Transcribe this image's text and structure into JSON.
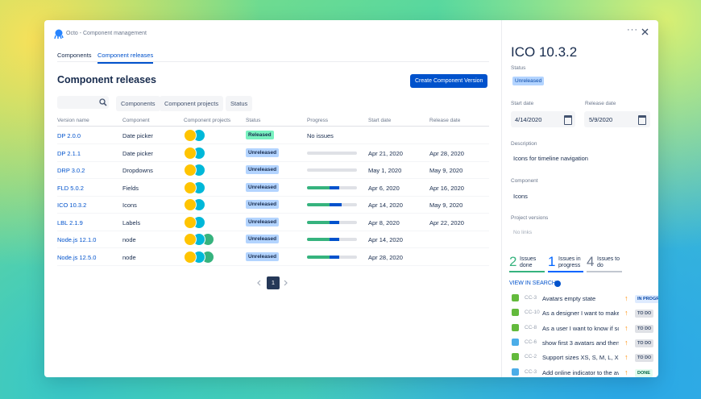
{
  "header": {
    "app_title": "Octo - Component management"
  },
  "tabs": [
    "Components",
    "Component releases"
  ],
  "page_title": "Component releases",
  "create_button": "Create Component Version",
  "filters": [
    "Components",
    "Component projects",
    "Status"
  ],
  "table": {
    "columns": [
      "Version name",
      "Component",
      "Component projects",
      "Status",
      "Progress",
      "Start date",
      "Release date"
    ],
    "rows": [
      {
        "version": "DP 2.0.0",
        "component": "Date picker",
        "avatars": 2,
        "status": "Released",
        "status_color": "#79f2c0",
        "progress_text": "No issues"
      },
      {
        "version": "DP 2.1.1",
        "component": "Date picker",
        "avatars": 2,
        "status": "Unreleased",
        "status_color": "#b3d4ff",
        "progress": {
          "done": 0,
          "in_progress": 0
        },
        "start": "Apr 21, 2020",
        "release": "Apr 28, 2020"
      },
      {
        "version": "DRP 3.0.2",
        "component": "Dropdowns",
        "avatars": 2,
        "status": "Unreleased",
        "status_color": "#b3d4ff",
        "progress": {
          "done": 0,
          "in_progress": 0
        },
        "start": "May 1, 2020",
        "release": "May 9, 2020"
      },
      {
        "version": "FLD 5.0.2",
        "component": "Fields",
        "avatars": 2,
        "status": "Unreleased",
        "status_color": "#b3d4ff",
        "progress": {
          "done": 45,
          "in_progress": 20
        },
        "start": "Apr 6, 2020",
        "release": "Apr 16, 2020"
      },
      {
        "version": "ICO 10.3.2",
        "component": "Icons",
        "avatars": 2,
        "status": "Unreleased",
        "status_color": "#b3d4ff",
        "progress": {
          "done": 45,
          "in_progress": 25
        },
        "start": "Apr 14, 2020",
        "release": "May 9, 2020"
      },
      {
        "version": "LBL 2.1.9",
        "component": "Labels",
        "avatars": 2,
        "status": "Unreleased",
        "status_color": "#b3d4ff",
        "progress": {
          "done": 45,
          "in_progress": 20
        },
        "start": "Apr 8, 2020",
        "release": "Apr 22, 2020"
      },
      {
        "version": "Node.js 12.1.0",
        "component": "node",
        "avatars": 3,
        "status": "Unreleased",
        "status_color": "#b3d4ff",
        "progress": {
          "done": 45,
          "in_progress": 20
        },
        "start": "Apr 14, 2020"
      },
      {
        "version": "Node.js 12.5.0",
        "component": "node",
        "avatars": 3,
        "status": "Unreleased",
        "status_color": "#b3d4ff",
        "progress": {
          "done": 45,
          "in_progress": 20
        },
        "start": "Apr 28, 2020"
      }
    ]
  },
  "pagination": {
    "current": "1"
  },
  "detail": {
    "title": "ICO 10.3.2",
    "status_label": "Status",
    "status": "Unreleased",
    "start_label": "Start date",
    "start": "4/14/2020",
    "release_label": "Release date",
    "release": "5/9/2020",
    "description_label": "Description",
    "description": "Icons for timeline navigation",
    "component_label": "Component",
    "component": "Icons",
    "project_versions_label": "Project versions",
    "project_versions": "No links",
    "stats": [
      {
        "count": "2",
        "label": "Issues done",
        "color": "#36b37e"
      },
      {
        "count": "1",
        "label": "Issues in progress",
        "color": "#0065ff"
      },
      {
        "count": "4",
        "label": "Issues to do",
        "color": "#c1c7d0"
      }
    ],
    "view_search": "VIEW IN SEARCH",
    "issues": [
      {
        "key": "CC-3",
        "summary": "Avatars empty state",
        "status": "IN PROGRESS",
        "color": "#deebff",
        "text_color": "#0747a6",
        "type": "story"
      },
      {
        "key": "CC-10",
        "summary": "As a designer I want to make",
        "status": "TO DO",
        "color": "#dfe1e6",
        "text_color": "#42526e",
        "type": "story"
      },
      {
        "key": "CC-8",
        "summary": "As a user I want to know if sor",
        "status": "TO DO",
        "color": "#dfe1e6",
        "text_color": "#42526e",
        "type": "story"
      },
      {
        "key": "CC-6",
        "summary": "show first 3 avatars and then",
        "status": "TO DO",
        "color": "#dfe1e6",
        "text_color": "#42526e",
        "type": "task"
      },
      {
        "key": "CC-2",
        "summary": "Support sizes XS, S, M, L, XL",
        "status": "TO DO",
        "color": "#dfe1e6",
        "text_color": "#42526e",
        "type": "story"
      },
      {
        "key": "CC-3",
        "summary": "Add online indicator to the ava",
        "status": "DONE",
        "color": "#e3fcef",
        "text_color": "#006644",
        "type": "task"
      }
    ]
  }
}
